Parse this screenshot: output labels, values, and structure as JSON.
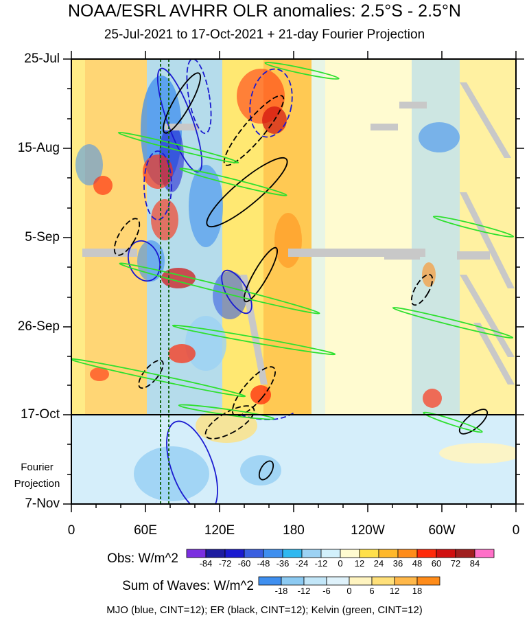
{
  "title": "NOAA/ESRL AVHRR OLR anomalies: 2.5°S - 2.5°N",
  "subtitle": "25-Jul-2021 to 17-Oct-2021 + 21-day Fourier Projection",
  "y_labels": [
    "25-Jul",
    "15-Aug",
    "5-Sep",
    "26-Sep",
    "17-Oct",
    "7-Nov"
  ],
  "x_labels": [
    "0",
    "60E",
    "120E",
    "180",
    "120W",
    "60W",
    "0"
  ],
  "projection_label": [
    "Fourier",
    "Projection"
  ],
  "obs_colorbar": {
    "title": "Obs: W/m^2",
    "ticks": [
      "-84",
      "-72",
      "-60",
      "-48",
      "-36",
      "-24",
      "-12",
      "0",
      "12",
      "24",
      "36",
      "48",
      "60",
      "72",
      "84"
    ],
    "colors": [
      "#7b2fe0",
      "#1d1ca0",
      "#1a1ad0",
      "#3a5fe0",
      "#3f8fef",
      "#2fb8f0",
      "#9cd2f4",
      "#d2f0fb",
      "#fffbd0",
      "#ffe04a",
      "#ffb82a",
      "#ff8c1a",
      "#ff2a0a",
      "#d01010",
      "#a01f1f",
      "#ff70c8"
    ]
  },
  "waves_colorbar": {
    "title": "Sum of Waves: W/m^2",
    "ticks": [
      "-18",
      "-12",
      "-6",
      "0",
      "6",
      "12",
      "18"
    ],
    "colors": [
      "#3f8fef",
      "#8ccaf2",
      "#c2e6f8",
      "#dff2fb",
      "#fff4c0",
      "#ffe07a",
      "#ffb84a",
      "#ff8c1a"
    ]
  },
  "footer": "MJO (blue, CINT=12); ER (black, CINT=12); Kelvin (green, CINT=12)",
  "chart_data": {
    "type": "heatmap",
    "title": "NOAA/ESRL AVHRR OLR anomalies: 2.5°S - 2.5°N",
    "subtitle": "25-Jul-2021 to 17-Oct-2021 + 21-day Fourier Projection",
    "x_axis": {
      "ticks": [
        "0",
        "60E",
        "120E",
        "180",
        "120W",
        "60W",
        "0"
      ],
      "range_lon": [
        0,
        360
      ]
    },
    "y_axis": {
      "ticks": [
        "25-Jul",
        "15-Aug",
        "5-Sep",
        "26-Sep",
        "17-Oct",
        "7-Nov"
      ],
      "range": [
        "2021-07-25",
        "2021-11-07"
      ],
      "direction": "time increases downward"
    },
    "projection_start": "2021-10-17",
    "obs_levels": [
      -84,
      -72,
      -60,
      -48,
      -36,
      -24,
      -12,
      0,
      12,
      24,
      36,
      48,
      60,
      72,
      84
    ],
    "wave_levels": [
      -18,
      -12,
      -6,
      0,
      6,
      12,
      18
    ],
    "overlays": [
      {
        "name": "MJO",
        "color": "blue",
        "cint": 12
      },
      {
        "name": "ER",
        "color": "black",
        "cint": 12
      },
      {
        "name": "Kelvin",
        "color": "green",
        "cint": 12
      }
    ],
    "reference_lines_lon": [
      72,
      80
    ],
    "shaded_regions": [
      {
        "lon": [
          0,
          20
        ],
        "obs": "positive, mixed"
      },
      {
        "lon": [
          20,
          125
        ],
        "obs": "strong alternating anomalies"
      },
      {
        "lon": [
          125,
          180
        ],
        "obs": "positive, enhanced"
      },
      {
        "lon": [
          180,
          260
        ],
        "obs": "near zero"
      },
      {
        "lon": [
          260,
          300
        ],
        "obs": "active, mixed"
      },
      {
        "lon": [
          300,
          360
        ],
        "obs": "near zero"
      }
    ]
  }
}
